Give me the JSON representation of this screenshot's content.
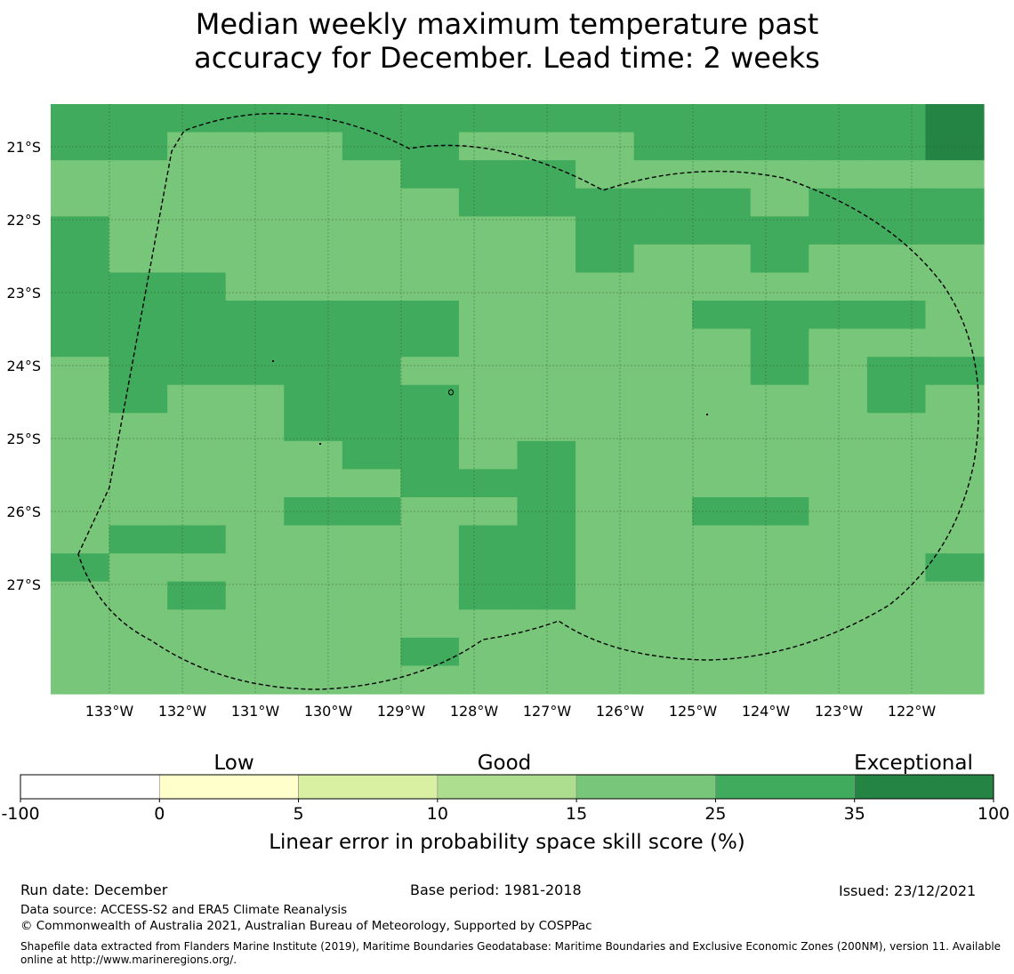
{
  "title": {
    "line1": "Median weekly maximum temperature past",
    "line2": "accuracy for December. Lead time: 2 weeks"
  },
  "map": {
    "lat_labels": [
      "21°S",
      "22°S",
      "23°S",
      "24°S",
      "25°S",
      "26°S",
      "27°S"
    ],
    "lon_labels": [
      "133°W",
      "132°W",
      "131°W",
      "130°W",
      "129°W",
      "128°W",
      "127°W",
      "126°W",
      "125°W",
      "124°W",
      "123°W",
      "122°W"
    ],
    "level_colors": [
      "#ffffff",
      "#ffffcc",
      "#d9f0a3",
      "#addd8e",
      "#78c679",
      "#41ab5d",
      "#238443"
    ],
    "grid_levels": [
      "5555555555555556",
      "5544455444555556",
      "4444445554444444",
      "4444444555554555",
      "5444444445555555",
      "5444444445445444",
      "5554444444444444",
      "5555555444455554",
      "5555555444445444",
      "4555554444445455",
      "4544555444444454",
      "4444555444444444",
      "4444455454444444",
      "4444445554444444",
      "4444554454455444",
      "4554444554444444",
      "5444444554444445",
      "4454444554444444",
      "4444444444444444",
      "4444445444444444",
      "4444444444444444"
    ]
  },
  "legend": {
    "category_low": "Low",
    "category_good": "Good",
    "category_exceptional": "Exceptional",
    "ticks": [
      "-100",
      "0",
      "5",
      "10",
      "15",
      "25",
      "35",
      "100"
    ],
    "colors": [
      "#ffffff",
      "#ffffcc",
      "#d9f0a3",
      "#addd8e",
      "#78c679",
      "#41ab5d",
      "#238443"
    ],
    "label": "Linear error in probability space skill score (%)"
  },
  "footer": {
    "run_date": "Run date: December",
    "base_period": "Base period: 1981-2018",
    "issued": "Issued: 23/12/2021",
    "data_source": "Data source: ACCESS-S2 and ERA5 Climate Reanalysis",
    "copyright": "© Commonwealth of Australia 2021, Australian Bureau of Meteorology, Supported by COSPPac",
    "shapefile": "Shapefile data extracted from Flanders Marine Institute (2019), Maritime Boundaries Geodatabase: Maritime Boundaries and Exclusive Economic Zones (200NM), version 11. Available online at http://www.marineregions.org/."
  }
}
